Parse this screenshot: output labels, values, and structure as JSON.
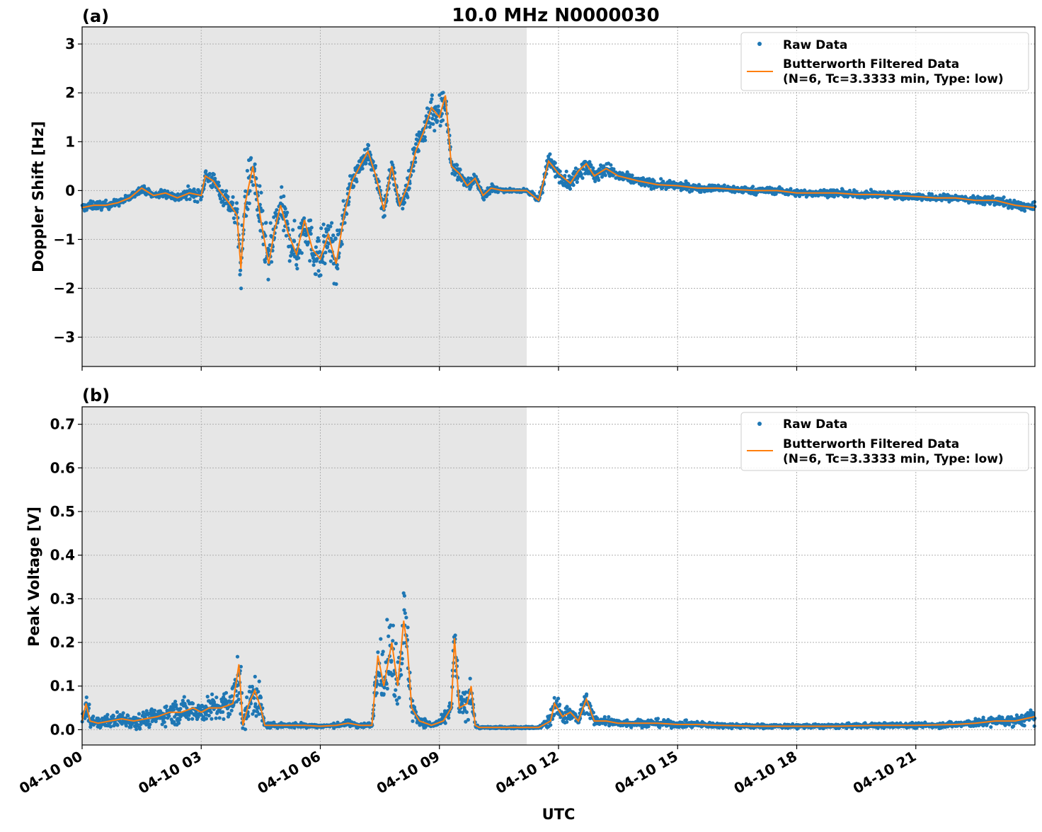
{
  "figure": {
    "title": "10.0 MHz N0000030",
    "xlabel": "UTC",
    "x_ticks": [
      "04-10 00",
      "04-10 03",
      "04-10 06",
      "04-10 09",
      "04-10 12",
      "04-10 15",
      "04-10 18",
      "04-10 21"
    ],
    "colors": {
      "raw": "#1f77b4",
      "filtered": "#ff7f0e",
      "shade": "#e6e6e6",
      "grid": "#b0b0b0"
    },
    "legend": {
      "raw": "Raw Data",
      "filtered_line1": "Butterworth Filtered Data",
      "filtered_line2": "(N=6, Tc=3.3333 min, Type: low)",
      "placement": "upper right"
    }
  },
  "chart_data": [
    {
      "type": "scatter",
      "panel_label": "(a)",
      "ylabel": "Doppler Shift [Hz]",
      "xlim_hours": [
        0,
        24
      ],
      "ylim": [
        -3.6,
        3.35
      ],
      "y_ticks": [
        3,
        2,
        1,
        0,
        -1,
        -2,
        -3
      ],
      "y_tick_labels": [
        "3",
        "2",
        "1",
        "0",
        "−1",
        "−2",
        "−3"
      ],
      "grid": true,
      "shaded_interval_hours": [
        0,
        11.2
      ],
      "series": [
        {
          "name": "Butterworth Filtered Data",
          "x_hours": [
            0,
            0.3,
            0.6,
            0.9,
            1.2,
            1.5,
            1.8,
            2.1,
            2.4,
            2.7,
            3.0,
            3.1,
            3.3,
            3.5,
            3.7,
            3.9,
            4.0,
            4.1,
            4.3,
            4.5,
            4.7,
            4.85,
            5.0,
            5.2,
            5.4,
            5.6,
            5.8,
            6.0,
            6.2,
            6.4,
            6.6,
            6.8,
            7.0,
            7.2,
            7.4,
            7.6,
            7.8,
            8.0,
            8.2,
            8.4,
            8.6,
            8.8,
            9.0,
            9.15,
            9.3,
            9.5,
            9.7,
            9.9,
            10.1,
            10.3,
            10.6,
            10.9,
            11.2,
            11.5,
            11.75,
            11.85,
            12.0,
            12.3,
            12.5,
            12.7,
            12.9,
            13.2,
            13.5,
            14.0,
            14.5,
            15.0,
            15.5,
            16.0,
            16.5,
            17.0,
            17.5,
            18.0,
            18.5,
            19.0,
            19.5,
            20.0,
            20.5,
            21.0,
            21.5,
            22.0,
            22.5,
            23.0,
            23.5,
            24.0
          ],
          "y": [
            -0.35,
            -0.3,
            -0.3,
            -0.25,
            -0.15,
            0.05,
            -0.1,
            -0.05,
            -0.15,
            -0.05,
            -0.1,
            0.3,
            0.2,
            -0.05,
            -0.25,
            -0.5,
            -1.6,
            -0.3,
            0.5,
            -0.6,
            -1.5,
            -0.8,
            -0.3,
            -0.9,
            -1.3,
            -0.6,
            -1.2,
            -1.4,
            -0.9,
            -1.5,
            -0.5,
            0.2,
            0.5,
            0.8,
            0.3,
            -0.4,
            0.5,
            -0.3,
            0.1,
            0.8,
            1.2,
            1.7,
            1.5,
            1.95,
            0.5,
            0.35,
            0.1,
            0.25,
            -0.1,
            0.05,
            0.0,
            0.0,
            0.0,
            -0.2,
            0.6,
            0.5,
            0.35,
            0.15,
            0.4,
            0.55,
            0.3,
            0.45,
            0.3,
            0.2,
            0.12,
            0.1,
            0.05,
            0.05,
            0.02,
            0.0,
            0.0,
            -0.05,
            -0.05,
            -0.05,
            -0.08,
            -0.08,
            -0.1,
            -0.12,
            -0.15,
            -0.15,
            -0.2,
            -0.2,
            -0.3,
            -0.35
          ]
        },
        {
          "name": "Raw Data",
          "note_spread_hz": [
            0.15,
            0.15,
            0.15,
            0.12,
            0.12,
            0.12,
            0.12,
            0.15,
            0.15,
            0.2,
            0.2,
            0.3,
            0.3,
            0.3,
            0.35,
            0.5,
            0.8,
            0.8,
            0.9,
            0.9,
            0.9,
            0.8,
            0.6,
            0.8,
            0.8,
            0.8,
            0.8,
            0.9,
            0.9,
            0.8,
            0.5,
            0.4,
            0.3,
            0.3,
            0.3,
            0.3,
            0.3,
            0.3,
            0.5,
            0.6,
            0.6,
            0.6,
            0.8,
            0.8,
            0.3,
            0.25,
            0.2,
            0.2,
            0.2,
            0.15,
            0.05,
            0.05,
            0.05,
            0.15,
            0.3,
            0.3,
            0.25,
            0.25,
            0.3,
            0.35,
            0.25,
            0.25,
            0.2,
            0.15,
            0.15,
            0.15,
            0.12,
            0.12,
            0.12,
            0.12,
            0.12,
            0.12,
            0.12,
            0.12,
            0.12,
            0.12,
            0.12,
            0.12,
            0.12,
            0.12,
            0.12,
            0.15,
            0.15,
            0.15
          ]
        }
      ]
    },
    {
      "type": "scatter",
      "panel_label": "(b)",
      "ylabel": "Peak Voltage [V]",
      "xlim_hours": [
        0,
        24
      ],
      "ylim": [
        -0.035,
        0.74
      ],
      "y_ticks": [
        0.7,
        0.6,
        0.5,
        0.4,
        0.3,
        0.2,
        0.1,
        0.0
      ],
      "y_tick_labels": [
        "0.7",
        "0.6",
        "0.5",
        "0.4",
        "0.3",
        "0.2",
        "0.1",
        "0.0"
      ],
      "grid": true,
      "shaded_interval_hours": [
        0,
        11.2
      ],
      "series": [
        {
          "name": "Butterworth Filtered Data",
          "x_hours": [
            0,
            0.1,
            0.2,
            0.4,
            0.7,
            1.0,
            1.3,
            1.6,
            1.9,
            2.2,
            2.5,
            2.8,
            3.0,
            3.2,
            3.5,
            3.8,
            3.95,
            4.05,
            4.2,
            4.35,
            4.5,
            4.6,
            4.8,
            5.2,
            5.6,
            6.0,
            6.4,
            6.7,
            7.0,
            7.3,
            7.45,
            7.6,
            7.8,
            7.95,
            8.1,
            8.2,
            8.3,
            8.5,
            8.8,
            9.1,
            9.3,
            9.38,
            9.5,
            9.7,
            9.8,
            9.9,
            10.0,
            10.5,
            11.0,
            11.5,
            11.8,
            11.9,
            12.1,
            12.3,
            12.5,
            12.7,
            12.9,
            13.2,
            13.5,
            14.0,
            14.5,
            15.0,
            15.5,
            16.0,
            17.0,
            18.0,
            19.0,
            20.0,
            21.0,
            22.0,
            22.5,
            23.0,
            23.5,
            24.0
          ],
          "y": [
            0.02,
            0.06,
            0.02,
            0.015,
            0.02,
            0.025,
            0.02,
            0.025,
            0.03,
            0.04,
            0.04,
            0.05,
            0.04,
            0.05,
            0.05,
            0.06,
            0.15,
            0.01,
            0.06,
            0.09,
            0.05,
            0.01,
            0.01,
            0.01,
            0.01,
            0.008,
            0.01,
            0.015,
            0.01,
            0.01,
            0.17,
            0.1,
            0.2,
            0.1,
            0.25,
            0.18,
            0.05,
            0.02,
            0.01,
            0.02,
            0.05,
            0.21,
            0.05,
            0.06,
            0.1,
            0.01,
            0.005,
            0.005,
            0.005,
            0.005,
            0.02,
            0.06,
            0.03,
            0.04,
            0.02,
            0.07,
            0.02,
            0.02,
            0.015,
            0.015,
            0.015,
            0.012,
            0.012,
            0.01,
            0.008,
            0.008,
            0.008,
            0.01,
            0.01,
            0.012,
            0.015,
            0.02,
            0.02,
            0.03
          ]
        },
        {
          "name": "Raw Data",
          "note_spread_v": [
            0.02,
            0.05,
            0.03,
            0.02,
            0.025,
            0.03,
            0.03,
            0.03,
            0.035,
            0.04,
            0.05,
            0.05,
            0.04,
            0.05,
            0.05,
            0.08,
            0.16,
            0.03,
            0.08,
            0.1,
            0.06,
            0.01,
            0.01,
            0.01,
            0.01,
            0.006,
            0.008,
            0.012,
            0.01,
            0.01,
            0.1,
            0.12,
            0.15,
            0.12,
            0.15,
            0.12,
            0.05,
            0.02,
            0.01,
            0.02,
            0.04,
            0.1,
            0.05,
            0.06,
            0.08,
            0.01,
            0.004,
            0.004,
            0.004,
            0.004,
            0.04,
            0.05,
            0.03,
            0.03,
            0.02,
            0.04,
            0.02,
            0.02,
            0.015,
            0.015,
            0.015,
            0.012,
            0.012,
            0.01,
            0.008,
            0.008,
            0.008,
            0.01,
            0.01,
            0.012,
            0.015,
            0.02,
            0.02,
            0.03
          ]
        }
      ]
    }
  ]
}
